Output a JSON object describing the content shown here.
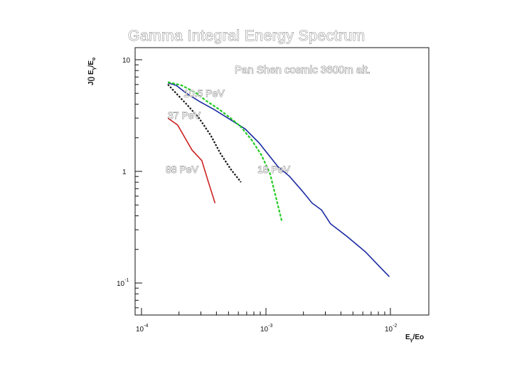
{
  "chart_data": {
    "type": "line",
    "title": "Gamma Integral Energy Spectrum",
    "annotation": "Pan Shen cosmic 3600m alt.",
    "xlabel_parts": {
      "main": "E",
      "sub1": "γ",
      "rest": "/Eo"
    },
    "ylabel_parts": {
      "a": "J(",
      "b": ") E",
      "sub": "γ",
      "c": "/E",
      "sub2": "o"
    },
    "x_scale": "log",
    "y_scale": "log",
    "xlim": [
      0.0001,
      0.01
    ],
    "ylim": [
      0.05,
      12.5
    ],
    "x_ticks": [
      {
        "base": "10",
        "exp": "-4",
        "value": 0.0001
      },
      {
        "base": "10",
        "exp": "-3",
        "value": 0.001
      },
      {
        "base": "10",
        "exp": "-2",
        "value": 0.01
      }
    ],
    "y_ticks": [
      {
        "base": "10",
        "exp": "-1",
        "value": 0.1
      },
      {
        "base": "1",
        "exp": "",
        "value": 1
      },
      {
        "base": "10",
        "exp": "",
        "value": 10
      }
    ],
    "series": [
      {
        "name": "10.5 PeV",
        "color": "#1a2aa0",
        "dash": "solid",
        "x": [
          0.000163,
          0.00019,
          0.00023,
          0.000295,
          0.00038,
          0.00052,
          0.00068,
          0.00088,
          0.00125,
          0.00155,
          0.00195,
          0.00235,
          0.0028,
          0.0033,
          0.0045,
          0.0063,
          0.0082,
          0.0098
        ],
        "y": [
          6.2,
          5.9,
          5.0,
          4.2,
          3.6,
          2.9,
          2.4,
          1.8,
          1.1,
          0.9,
          0.67,
          0.52,
          0.45,
          0.34,
          0.26,
          0.19,
          0.14,
          0.114
        ]
      },
      {
        "name": "18 PeV",
        "color": "#22cc22",
        "dash": "dashed",
        "x": [
          0.000163,
          0.00021,
          0.00027,
          0.00033,
          0.00042,
          0.00052,
          0.00063,
          0.00077,
          0.00092,
          0.00108,
          0.00122,
          0.00134
        ],
        "y": [
          6.3,
          5.9,
          5.1,
          4.3,
          3.6,
          3.0,
          2.5,
          1.9,
          1.4,
          0.95,
          0.55,
          0.36
        ]
      },
      {
        "name": "37 PeV",
        "color": "#111111",
        "dash": "dotted",
        "x": [
          0.000163,
          0.00019,
          0.00023,
          0.00029,
          0.00036,
          0.00043,
          0.00052,
          0.00063
        ],
        "y": [
          6.0,
          5.0,
          4.0,
          3.0,
          2.1,
          1.45,
          1.05,
          0.8
        ]
      },
      {
        "name": "88 PeV",
        "color": "#cc2222",
        "dash": "solid",
        "x": [
          0.000163,
          0.000195,
          0.000255,
          0.000305,
          0.000345,
          0.00039
        ],
        "y": [
          3.0,
          2.6,
          1.55,
          1.25,
          0.8,
          0.52
        ]
      }
    ]
  }
}
